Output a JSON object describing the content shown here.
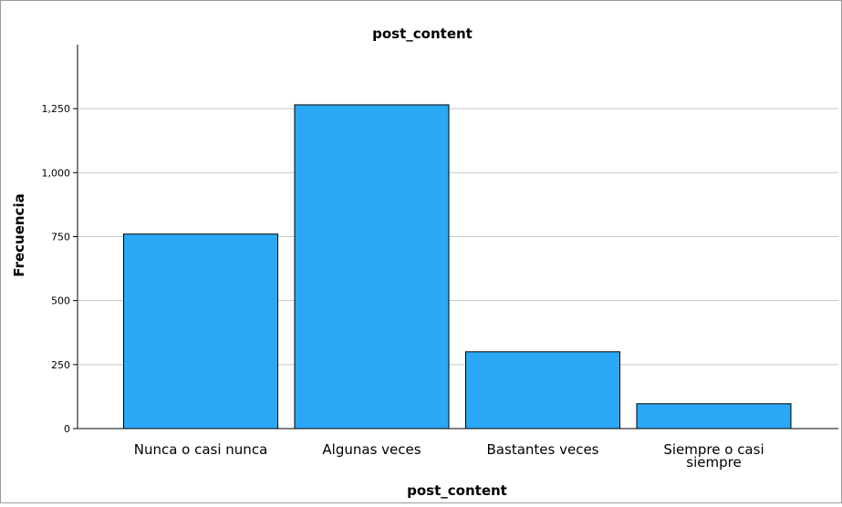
{
  "chart_data": {
    "type": "bar",
    "title": "post_content",
    "xlabel": "post_content",
    "ylabel": "Frecuencia",
    "categories": [
      "Nunca o casi nunca",
      "Algunas veces",
      "Bastantes veces",
      "Siempre o casi siempre"
    ],
    "category_lines": [
      [
        "Nunca o casi nunca"
      ],
      [
        "Algunas veces"
      ],
      [
        "Bastantes veces"
      ],
      [
        "Siempre o casi",
        "siempre"
      ]
    ],
    "values": [
      760,
      1265,
      300,
      97
    ],
    "ylim": [
      0,
      1500
    ],
    "yticks": [
      0,
      250,
      500,
      750,
      1000,
      1250
    ],
    "ytick_labels": [
      "0",
      "250",
      "500",
      "750",
      "1,000",
      "1,250"
    ],
    "grid": true,
    "legend": "none"
  },
  "colors": {
    "bar_fill": "#2aa8f5",
    "bar_stroke": "#000000",
    "grid": "#c8c8c8",
    "axis": "#000000"
  }
}
